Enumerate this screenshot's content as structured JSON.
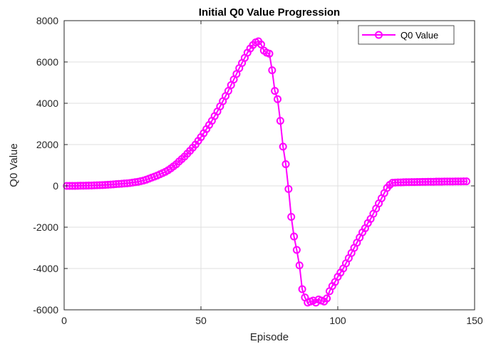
{
  "chart_data": {
    "type": "line",
    "title": "Initial Q0 Value Progression",
    "xlabel": "Episode",
    "ylabel": "Q0 Value",
    "xlim": [
      0,
      150
    ],
    "ylim": [
      -6000,
      8000
    ],
    "xticks": [
      0,
      50,
      100,
      150
    ],
    "yticks": [
      -6000,
      -4000,
      -2000,
      0,
      2000,
      4000,
      6000,
      8000
    ],
    "xtick_labels": [
      "0",
      "50",
      "100",
      "150"
    ],
    "ytick_labels": [
      "-6000",
      "-4000",
      "-2000",
      "0",
      "2000",
      "4000",
      "6000",
      "8000"
    ],
    "grid": true,
    "legend_position": "top-right",
    "series": [
      {
        "name": "Q0 Value",
        "color": "#ff00ff",
        "marker": "circle",
        "x": [
          1,
          2,
          3,
          4,
          5,
          6,
          7,
          8,
          9,
          10,
          11,
          12,
          13,
          14,
          15,
          16,
          17,
          18,
          19,
          20,
          21,
          22,
          23,
          24,
          25,
          26,
          27,
          28,
          29,
          30,
          31,
          32,
          33,
          34,
          35,
          36,
          37,
          38,
          39,
          40,
          41,
          42,
          43,
          44,
          45,
          46,
          47,
          48,
          49,
          50,
          51,
          52,
          53,
          54,
          55,
          56,
          57,
          58,
          59,
          60,
          61,
          62,
          63,
          64,
          65,
          66,
          67,
          68,
          69,
          70,
          71,
          72,
          73,
          74,
          75,
          76,
          77,
          78,
          79,
          80,
          81,
          82,
          83,
          84,
          85,
          86,
          87,
          88,
          89,
          90,
          91,
          92,
          93,
          94,
          95,
          96,
          97,
          98,
          99,
          100,
          101,
          102,
          103,
          104,
          105,
          106,
          107,
          108,
          109,
          110,
          111,
          112,
          113,
          114,
          115,
          116,
          117,
          118,
          119,
          120,
          121,
          122,
          123,
          124,
          125,
          126,
          127,
          128,
          129,
          130,
          131,
          132,
          133,
          134,
          135,
          136,
          137,
          138,
          139,
          140,
          141,
          142,
          143,
          144,
          145,
          146,
          147
        ],
        "y": [
          0,
          0,
          0,
          2,
          5,
          8,
          10,
          12,
          15,
          18,
          25,
          30,
          35,
          40,
          48,
          55,
          65,
          75,
          85,
          95,
          105,
          115,
          125,
          140,
          160,
          180,
          200,
          230,
          260,
          300,
          350,
          400,
          450,
          500,
          560,
          620,
          680,
          760,
          850,
          950,
          1050,
          1180,
          1300,
          1420,
          1560,
          1700,
          1850,
          2000,
          2180,
          2360,
          2550,
          2750,
          2950,
          3150,
          3380,
          3600,
          3850,
          4100,
          4350,
          4600,
          4880,
          5150,
          5420,
          5700,
          5950,
          6200,
          6450,
          6650,
          6820,
          6950,
          7000,
          6850,
          6550,
          6450,
          6400,
          5600,
          4600,
          4200,
          3150,
          1900,
          1050,
          -150,
          -1500,
          -2450,
          -3100,
          -3850,
          -5000,
          -5400,
          -5650,
          -5600,
          -5550,
          -5650,
          -5500,
          -5550,
          -5600,
          -5450,
          -5100,
          -4850,
          -4650,
          -4400,
          -4200,
          -4000,
          -3750,
          -3500,
          -3250,
          -3000,
          -2750,
          -2500,
          -2250,
          -2050,
          -1800,
          -1600,
          -1350,
          -1100,
          -850,
          -600,
          -350,
          -100,
          50,
          150,
          160,
          170,
          170,
          175,
          180,
          180,
          185,
          185,
          190,
          190,
          195,
          195,
          200,
          200,
          200,
          205,
          205,
          205,
          210,
          210,
          210,
          210,
          215,
          215,
          215,
          220,
          220
        ]
      }
    ]
  }
}
